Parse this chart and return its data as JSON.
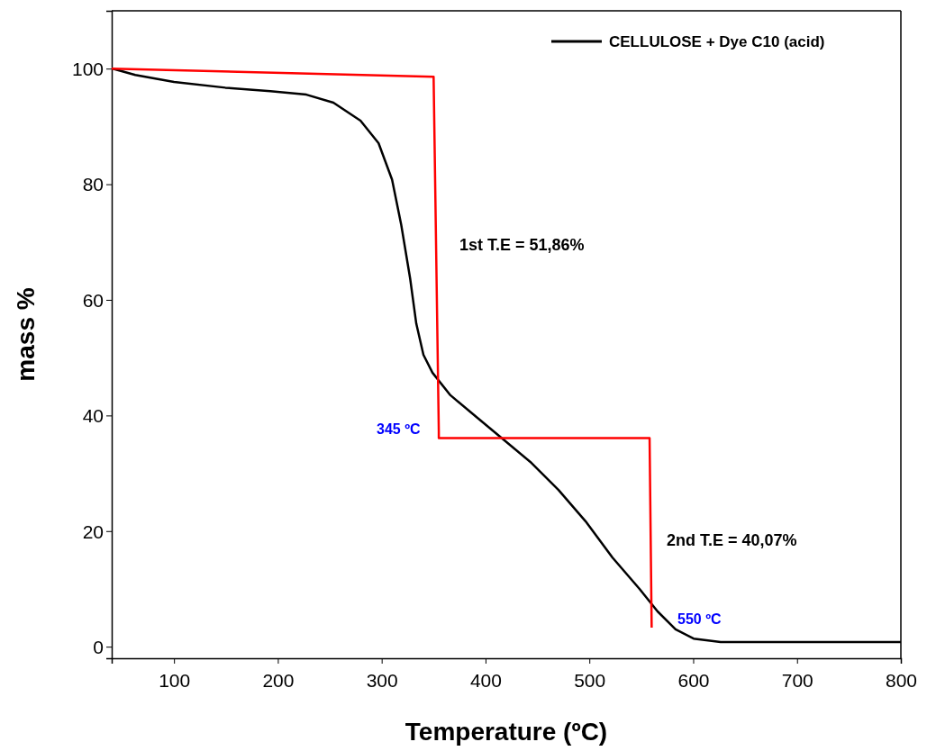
{
  "chart_data": {
    "type": "line",
    "xlabel": "Temperature (ºC)",
    "ylabel": "mass %",
    "xlim": [
      40,
      800
    ],
    "ylim": [
      -2,
      110
    ],
    "xticks": [
      100,
      200,
      300,
      400,
      500,
      600,
      700,
      800
    ],
    "yticks": [
      0,
      20,
      40,
      60,
      80,
      100
    ],
    "grid": false,
    "legend": "top right",
    "marker": "none",
    "line_style": "solid",
    "series": [
      {
        "name": "CELLULOSE + Dye C10 (acid)",
        "color": "#000000",
        "x": [
          41,
          62.7,
          100,
          149.5,
          192.8,
          227.5,
          253.5,
          279.6,
          297,
          310,
          318.7,
          327.4,
          333.3,
          340.2,
          348.9,
          366.2,
          392.2,
          418.2,
          444.2,
          470.3,
          496.3,
          522.3,
          548.3,
          565.7,
          583,
          600.4,
          626.4,
          713,
          800
        ],
        "values": [
          100,
          98.9,
          97.7,
          96.7,
          96.1,
          95.5,
          94.1,
          91,
          87.1,
          80.8,
          73.1,
          63.7,
          55.9,
          50.5,
          47.4,
          43.5,
          39.6,
          35.7,
          31.8,
          27.1,
          21.7,
          15.4,
          10,
          6.1,
          3,
          1.4,
          0.8,
          0.8,
          0.8
        ]
      },
      {
        "color": "#ff0000",
        "x": [
          40,
          350,
          355,
          355,
          558,
          560
        ],
        "values": [
          100,
          98.6,
          37.2,
          36.1,
          36.1,
          3.3
        ]
      }
    ],
    "annotations": [
      "1st T.E = 51,86%",
      "345 ºC",
      "2nd T.E = 40,07%",
      "550 ºC"
    ]
  }
}
